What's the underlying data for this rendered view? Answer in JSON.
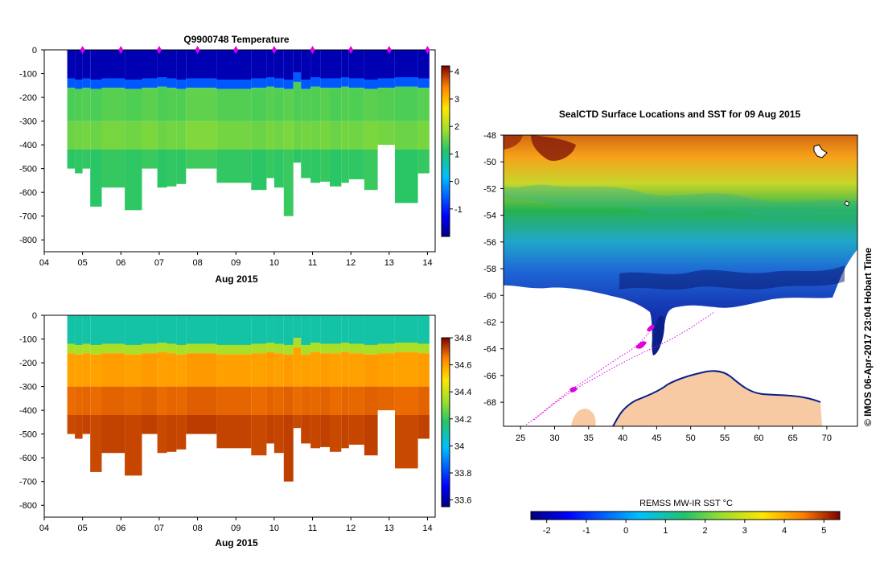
{
  "chart_data": [
    {
      "type": "heatmap",
      "title": "Q9900748  Temperature",
      "xlabel": "Aug 2015",
      "xlim": [
        4,
        14.2
      ],
      "ylim": [
        -850,
        0
      ],
      "x_ticks": [
        "04",
        "05",
        "06",
        "07",
        "08",
        "09",
        "10",
        "11",
        "12",
        "13",
        "14"
      ],
      "y_ticks": [
        "0",
        "-100",
        "-200",
        "-300",
        "-400",
        "-500",
        "-600",
        "-700",
        "-800"
      ],
      "profile_markers_x": [
        5.0,
        6.0,
        7.0,
        8.0,
        9.0,
        10.0,
        11.0,
        12.0,
        13.0,
        14.0
      ],
      "colorbar": {
        "min": -2.0,
        "max": 4.2,
        "ticks": [
          "4",
          "3",
          "2",
          "1",
          "0",
          "-1"
        ]
      },
      "layers": [
        {
          "name": "surface",
          "value": -1.7
        },
        {
          "name": "thermocline",
          "value": -0.6
        },
        {
          "name": "upper",
          "value": 1.4
        },
        {
          "name": "mid",
          "value": 1.6
        },
        {
          "name": "deep",
          "value": 1.2
        }
      ]
    },
    {
      "type": "heatmap",
      "title": "",
      "xlabel": "Aug 2015",
      "xlim": [
        4,
        14.2
      ],
      "ylim": [
        -850,
        0
      ],
      "x_ticks": [
        "04",
        "05",
        "06",
        "07",
        "08",
        "09",
        "10",
        "11",
        "12",
        "13",
        "14"
      ],
      "y_ticks": [
        "0",
        "-100",
        "-200",
        "-300",
        "-400",
        "-500",
        "-600",
        "-700",
        "-800"
      ],
      "colorbar": {
        "min": 33.55,
        "max": 34.8,
        "ticks": [
          "34.8",
          "34.6",
          "34.4",
          "34.2",
          "34",
          "33.8",
          "33.6"
        ]
      },
      "layers": [
        {
          "name": "surface",
          "value": 34.1
        },
        {
          "name": "halocline",
          "value": 34.35
        },
        {
          "name": "upper",
          "value": 34.6
        },
        {
          "name": "mid",
          "value": 34.68
        },
        {
          "name": "deep",
          "value": 34.72
        }
      ]
    },
    {
      "type": "heatmap",
      "title": "SealCTD Surface Locations and SST for 09 Aug 2015",
      "xlim": [
        22.5,
        74.5
      ],
      "ylim": [
        -69.8,
        -48
      ],
      "x_ticks": [
        "25",
        "30",
        "35",
        "40",
        "45",
        "50",
        "55",
        "60",
        "65",
        "70"
      ],
      "y_ticks": [
        "-48",
        "-50",
        "-52",
        "-54",
        "-56",
        "-58",
        "-60",
        "-62",
        "-64",
        "-66",
        "-68"
      ],
      "colorbar": {
        "label": "REMSS MW-IR SST °C",
        "min": -2.4,
        "max": 5.4,
        "ticks": [
          "-2",
          "-1",
          "0",
          "1",
          "2",
          "3",
          "4",
          "5"
        ]
      },
      "credit": "© IMOS 06-Apr-2017 23:04 Hobart Time"
    }
  ],
  "profiles": [
    {
      "x0": 4.6,
      "x1": 4.8,
      "mld": -120,
      "bottom": -500,
      "top": -10,
      "var": 0.0
    },
    {
      "x0": 4.8,
      "x1": 5.0,
      "mld": -125,
      "bottom": -520,
      "top": -10,
      "var": 0.1
    },
    {
      "x0": 5.0,
      "x1": 5.2,
      "mld": -120,
      "bottom": -500,
      "top": -10,
      "var": 0.2
    },
    {
      "x0": 5.2,
      "x1": 5.5,
      "mld": -125,
      "bottom": -660,
      "top": -10,
      "var": 0.0
    },
    {
      "x0": 5.5,
      "x1": 6.1,
      "mld": -120,
      "bottom": -580,
      "top": -10,
      "var": 0.3
    },
    {
      "x0": 6.1,
      "x1": 6.55,
      "mld": -125,
      "bottom": -675,
      "top": -10,
      "var": 0.1
    },
    {
      "x0": 6.55,
      "x1": 6.95,
      "mld": -120,
      "bottom": -500,
      "top": -10,
      "var": 0.4
    },
    {
      "x0": 6.95,
      "x1": 7.2,
      "mld": -115,
      "bottom": -580,
      "top": -10,
      "var": 0.0
    },
    {
      "x0": 7.2,
      "x1": 7.45,
      "mld": -120,
      "bottom": -575,
      "top": -10,
      "var": 0.2
    },
    {
      "x0": 7.45,
      "x1": 7.7,
      "mld": -125,
      "bottom": -565,
      "top": -10,
      "var": 0.1
    },
    {
      "x0": 7.7,
      "x1": 8.5,
      "mld": -120,
      "bottom": -500,
      "top": -10,
      "var": 0.5
    },
    {
      "x0": 8.5,
      "x1": 9.4,
      "mld": -125,
      "bottom": -560,
      "top": -10,
      "var": 0.2
    },
    {
      "x0": 9.4,
      "x1": 9.8,
      "mld": -120,
      "bottom": -590,
      "top": -10,
      "var": 0.0
    },
    {
      "x0": 9.8,
      "x1": 10.0,
      "mld": -115,
      "bottom": -540,
      "top": -10,
      "var": 0.3
    },
    {
      "x0": 10.0,
      "x1": 10.25,
      "mld": -120,
      "bottom": -580,
      "top": -10,
      "var": 0.1
    },
    {
      "x0": 10.25,
      "x1": 10.5,
      "mld": -125,
      "bottom": -700,
      "top": -10,
      "var": 0.4
    },
    {
      "x0": 10.5,
      "x1": 10.7,
      "mld": -95,
      "bottom": -475,
      "top": -10,
      "var": 0.0
    },
    {
      "x0": 10.7,
      "x1": 10.95,
      "mld": -125,
      "bottom": -540,
      "top": -10,
      "var": 0.2
    },
    {
      "x0": 10.95,
      "x1": 11.2,
      "mld": -115,
      "bottom": -560,
      "top": -10,
      "var": 0.1
    },
    {
      "x0": 11.2,
      "x1": 11.45,
      "mld": -120,
      "bottom": -555,
      "top": -10,
      "var": 0.3
    },
    {
      "x0": 11.45,
      "x1": 11.75,
      "mld": -120,
      "bottom": -575,
      "top": -10,
      "var": 0.0
    },
    {
      "x0": 11.75,
      "x1": 11.95,
      "mld": -115,
      "bottom": -560,
      "top": -10,
      "var": 0.2
    },
    {
      "x0": 11.95,
      "x1": 12.35,
      "mld": -120,
      "bottom": -545,
      "top": -10,
      "var": 0.1
    },
    {
      "x0": 12.35,
      "x1": 12.7,
      "mld": -125,
      "bottom": -590,
      "top": -10,
      "var": 0.4
    },
    {
      "x0": 12.7,
      "x1": 13.15,
      "mld": -120,
      "bottom": -400,
      "top": -10,
      "var": 0.2
    },
    {
      "x0": 13.15,
      "x1": 13.75,
      "mld": -115,
      "bottom": -645,
      "top": -10,
      "var": 0.0
    },
    {
      "x0": 13.75,
      "x1": 14.05,
      "mld": -120,
      "bottom": -520,
      "top": -10,
      "var": 0.3
    }
  ]
}
